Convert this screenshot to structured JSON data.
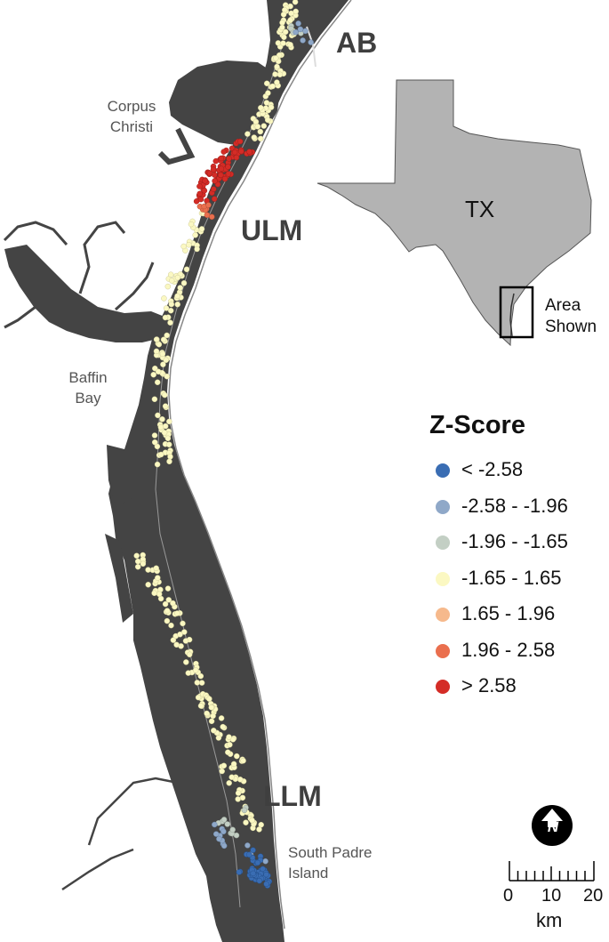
{
  "regions": {
    "ab": "AB",
    "ulm": "ULM",
    "llm": "LLM"
  },
  "places": {
    "corpus_christi": [
      "Corpus",
      "Christi"
    ],
    "baffin_bay": [
      "Baffin",
      "Bay"
    ],
    "south_padre_island": [
      "South Padre",
      "Island"
    ]
  },
  "inset": {
    "state_label": "TX",
    "area_label": [
      "Area",
      "Shown"
    ]
  },
  "legend": {
    "title": "Z-Score",
    "classes": [
      {
        "label": "< -2.58",
        "color": "#3a6db3"
      },
      {
        "label": "-2.58 - -1.96",
        "color": "#8fa8c8"
      },
      {
        "label": "-1.96 - -1.65",
        "color": "#c3cfc4"
      },
      {
        "label": "-1.65 - 1.65",
        "color": "#fbf8c2"
      },
      {
        "label": "1.65 - 1.96",
        "color": "#f6b98c"
      },
      {
        "label": "1.96 - 2.58",
        "color": "#ea6f4e"
      },
      {
        "label": "> 2.58",
        "color": "#d42c26"
      }
    ]
  },
  "scale": {
    "ticks": [
      "0",
      "10",
      "20"
    ],
    "unit": "km"
  },
  "north_arrow": {
    "letter": "N"
  },
  "colors": {
    "land": "#444444",
    "water": "#ffffff",
    "texas": "#b3b3b3"
  }
}
